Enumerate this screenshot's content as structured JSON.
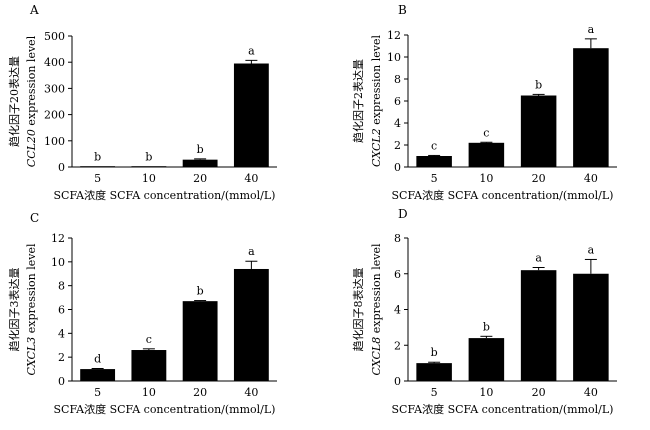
{
  "chart_data": [
    {
      "type": "bar",
      "panel": "A",
      "categories": [
        "5",
        "10",
        "20",
        "40"
      ],
      "values": [
        1,
        2,
        28,
        395
      ],
      "errors": [
        0,
        0,
        3,
        12
      ],
      "significance": [
        "b",
        "b",
        "b",
        "a"
      ],
      "ylim": [
        0,
        500
      ],
      "yticks": [
        0,
        100,
        200,
        300,
        400,
        500
      ],
      "ylabel_line1": "趋化因子20表达量",
      "ylabel_gene": "CCL20",
      "ylabel_rest": " expression level",
      "xlabel": "SCFA浓度 SCFA concentration/(mmol/L)"
    },
    {
      "type": "bar",
      "panel": "B",
      "categories": [
        "5",
        "10",
        "20",
        "40"
      ],
      "values": [
        1.0,
        2.2,
        6.5,
        10.8
      ],
      "errors": [
        0.05,
        0.05,
        0.1,
        0.85
      ],
      "significance": [
        "c",
        "c",
        "b",
        "a"
      ],
      "ylim": [
        0,
        12
      ],
      "yticks": [
        0,
        2,
        4,
        6,
        8,
        10,
        12
      ],
      "ylabel_line1": "趋化因子2表达量",
      "ylabel_gene": "CXCL2",
      "ylabel_rest": " expression level",
      "xlabel": "SCFA浓度 SCFA concentration/(mmol/L)"
    },
    {
      "type": "bar",
      "panel": "C",
      "categories": [
        "5",
        "10",
        "20",
        "40"
      ],
      "values": [
        1.0,
        2.6,
        6.7,
        9.4
      ],
      "errors": [
        0.05,
        0.1,
        0.05,
        0.65
      ],
      "significance": [
        "d",
        "c",
        "b",
        "a"
      ],
      "ylim": [
        0,
        12
      ],
      "yticks": [
        0,
        2,
        4,
        6,
        8,
        10,
        12
      ],
      "ylabel_line1": "趋化因子3表达量",
      "ylabel_gene": "CXCL3",
      "ylabel_rest": " expression level",
      "xlabel": "SCFA浓度 SCFA concentration/(mmol/L)"
    },
    {
      "type": "bar",
      "panel": "D",
      "categories": [
        "5",
        "10",
        "20",
        "40"
      ],
      "values": [
        1.0,
        2.4,
        6.2,
        6.0
      ],
      "errors": [
        0.05,
        0.1,
        0.15,
        0.8
      ],
      "significance": [
        "b",
        "b",
        "a",
        "a"
      ],
      "ylim": [
        0,
        8
      ],
      "yticks": [
        0,
        2,
        4,
        6,
        8
      ],
      "ylabel_line1": "趋化因子8表达量",
      "ylabel_gene": "CXCL8",
      "ylabel_rest": " expression level",
      "xlabel": "SCFA浓度 SCFA concentration/(mmol/L)"
    }
  ]
}
